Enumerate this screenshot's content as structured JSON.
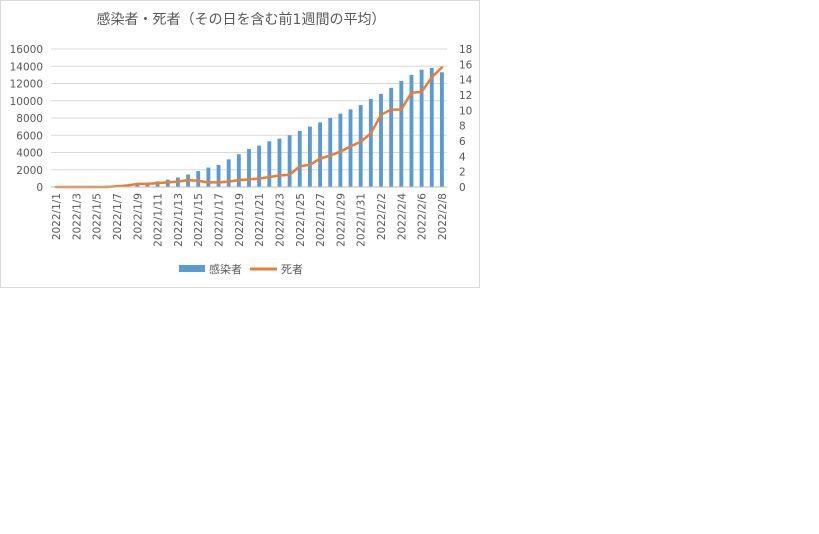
{
  "chart_data": {
    "type": "bar+line",
    "title": "感染者・死者（その日を含む前1週間の平均）",
    "x": [
      "2022/1/1",
      "2022/1/2",
      "2022/1/3",
      "2022/1/4",
      "2022/1/5",
      "2022/1/6",
      "2022/1/7",
      "2022/1/8",
      "2022/1/9",
      "2022/1/10",
      "2022/1/11",
      "2022/1/12",
      "2022/1/13",
      "2022/1/14",
      "2022/1/15",
      "2022/1/16",
      "2022/1/17",
      "2022/1/18",
      "2022/1/19",
      "2022/1/20",
      "2022/1/21",
      "2022/1/22",
      "2022/1/23",
      "2022/1/24",
      "2022/1/25",
      "2022/1/26",
      "2022/1/27",
      "2022/1/28",
      "2022/1/29",
      "2022/1/30",
      "2022/1/31",
      "2022/2/1",
      "2022/2/2",
      "2022/2/3",
      "2022/2/4",
      "2022/2/5",
      "2022/2/6",
      "2022/2/7",
      "2022/2/8"
    ],
    "x_tick_labels": [
      "2022/1/1",
      "2022/1/3",
      "2022/1/5",
      "2022/1/7",
      "2022/1/9",
      "2022/1/11",
      "2022/1/13",
      "2022/1/15",
      "2022/1/17",
      "2022/1/19",
      "2022/1/21",
      "2022/1/23",
      "2022/1/25",
      "2022/1/27",
      "2022/1/29",
      "2022/1/31",
      "2022/2/2",
      "2022/2/4",
      "2022/2/6",
      "2022/2/8"
    ],
    "series": [
      {
        "name": "感染者",
        "type": "bar",
        "axis": "left",
        "color": "#5b9bd5",
        "values": [
          80,
          90,
          100,
          110,
          120,
          150,
          200,
          300,
          400,
          500,
          650,
          850,
          1100,
          1450,
          1850,
          2250,
          2550,
          3200,
          3800,
          4400,
          4800,
          5300,
          5600,
          6000,
          6500,
          7000,
          7500,
          8000,
          8500,
          9000,
          9500,
          10200,
          10800,
          11500,
          12300,
          13000,
          13600,
          13800,
          13300
        ]
      },
      {
        "name": "死者",
        "type": "line",
        "axis": "right",
        "color": "#ed7d31",
        "values": [
          0,
          0,
          0,
          0,
          0,
          0,
          0.1,
          0.2,
          0.4,
          0.4,
          0.5,
          0.6,
          0.7,
          0.9,
          0.8,
          0.6,
          0.6,
          0.7,
          0.9,
          1.0,
          1.1,
          1.3,
          1.5,
          1.6,
          2.7,
          2.9,
          3.7,
          4.1,
          4.6,
          5.3,
          5.9,
          7.0,
          9.4,
          10.1,
          10.1,
          12.3,
          12.4,
          14.3,
          15.6
        ]
      }
    ],
    "y_left": {
      "min": 0,
      "max": 16000,
      "ticks": [
        "0",
        "2000",
        "4000",
        "6000",
        "8000",
        "10000",
        "12000",
        "14000",
        "16000"
      ]
    },
    "y_right": {
      "min": 0,
      "max": 18,
      "ticks": [
        "0",
        "2",
        "4",
        "6",
        "8",
        "10",
        "12",
        "14",
        "16",
        "18"
      ]
    },
    "grid": true,
    "legend_position": "bottom"
  }
}
